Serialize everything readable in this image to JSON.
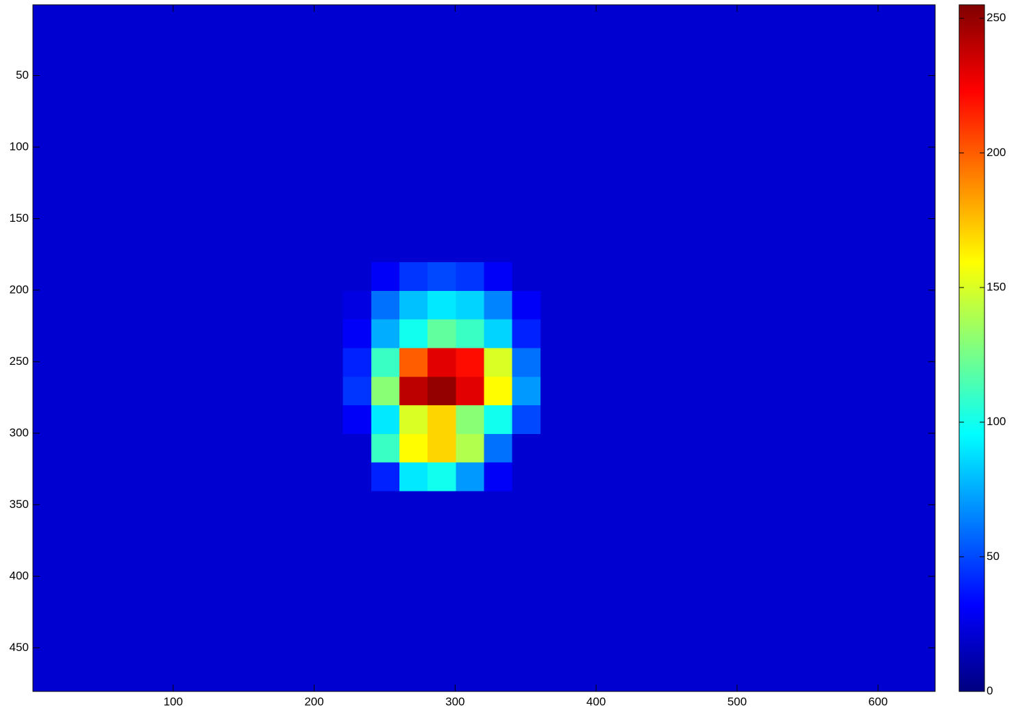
{
  "chart_data": {
    "type": "heatmap",
    "colormap": "jet",
    "x": [
      10.5,
      30.5,
      50.5,
      70.5,
      90.5,
      110.5,
      130.5,
      150.5,
      170.5,
      190.5,
      210.5,
      230.5,
      250.5,
      270.5,
      290.5,
      310.5,
      330.5,
      350.5,
      370.5,
      390.5,
      410.5,
      430.5,
      450.5,
      470.5,
      490.5,
      510.5,
      530.5,
      550.5,
      570.5,
      590.5,
      610.5,
      630.5
    ],
    "y": [
      10.5,
      30.5,
      50.5,
      70.5,
      90.5,
      110.5,
      130.5,
      150.5,
      170.5,
      190.5,
      210.5,
      230.5,
      250.5,
      270.5,
      290.5,
      310.5,
      330.5,
      350.5,
      370.5,
      390.5,
      410.5,
      430.5,
      450.5,
      470.5
    ],
    "values": [
      [
        20,
        20,
        20,
        20,
        20,
        20,
        20,
        20,
        20,
        20,
        20,
        20,
        20,
        20,
        20,
        20,
        20,
        20,
        20,
        20,
        20,
        20,
        20,
        20,
        20,
        20,
        20,
        20,
        20,
        20,
        20,
        20
      ],
      [
        20,
        20,
        20,
        20,
        20,
        20,
        20,
        20,
        20,
        20,
        20,
        20,
        20,
        20,
        20,
        20,
        20,
        20,
        20,
        20,
        20,
        20,
        20,
        20,
        20,
        20,
        20,
        20,
        20,
        20,
        20,
        20
      ],
      [
        20,
        20,
        20,
        20,
        20,
        20,
        20,
        20,
        20,
        20,
        20,
        20,
        20,
        20,
        20,
        20,
        20,
        20,
        20,
        20,
        20,
        20,
        20,
        20,
        20,
        20,
        20,
        20,
        20,
        20,
        20,
        20
      ],
      [
        20,
        20,
        20,
        20,
        20,
        20,
        20,
        20,
        20,
        20,
        20,
        20,
        20,
        20,
        20,
        20,
        20,
        20,
        20,
        20,
        20,
        20,
        20,
        20,
        20,
        20,
        20,
        20,
        20,
        20,
        20,
        20
      ],
      [
        20,
        20,
        20,
        20,
        20,
        20,
        20,
        20,
        20,
        20,
        20,
        20,
        20,
        20,
        20,
        20,
        20,
        20,
        20,
        20,
        20,
        20,
        20,
        20,
        20,
        20,
        20,
        20,
        20,
        20,
        20,
        20
      ],
      [
        20,
        20,
        20,
        20,
        20,
        20,
        20,
        20,
        20,
        20,
        20,
        20,
        20,
        20,
        20,
        20,
        20,
        20,
        20,
        20,
        20,
        20,
        20,
        20,
        20,
        20,
        20,
        20,
        20,
        20,
        20,
        20
      ],
      [
        20,
        20,
        20,
        20,
        20,
        20,
        20,
        20,
        20,
        20,
        20,
        20,
        20,
        20,
        20,
        20,
        20,
        20,
        20,
        20,
        20,
        20,
        20,
        20,
        20,
        20,
        20,
        20,
        20,
        20,
        20,
        20
      ],
      [
        20,
        20,
        20,
        20,
        20,
        20,
        20,
        20,
        20,
        20,
        20,
        20,
        20,
        20,
        20,
        20,
        20,
        20,
        20,
        20,
        20,
        20,
        20,
        20,
        20,
        20,
        20,
        20,
        20,
        20,
        20,
        20
      ],
      [
        20,
        20,
        20,
        20,
        20,
        20,
        20,
        20,
        20,
        20,
        20,
        20,
        20,
        20,
        20,
        20,
        20,
        20,
        20,
        20,
        20,
        20,
        20,
        20,
        20,
        20,
        20,
        20,
        20,
        20,
        20,
        20
      ],
      [
        20,
        20,
        20,
        20,
        20,
        20,
        20,
        20,
        20,
        20,
        20,
        20,
        30,
        45,
        50,
        45,
        30,
        20,
        20,
        20,
        20,
        20,
        20,
        20,
        20,
        20,
        20,
        20,
        20,
        20,
        20,
        20
      ],
      [
        20,
        20,
        20,
        20,
        20,
        20,
        20,
        20,
        20,
        20,
        20,
        25,
        60,
        80,
        90,
        85,
        65,
        30,
        20,
        20,
        20,
        20,
        20,
        20,
        20,
        20,
        20,
        20,
        20,
        20,
        20,
        20
      ],
      [
        20,
        20,
        20,
        20,
        20,
        20,
        20,
        20,
        20,
        20,
        20,
        30,
        75,
        100,
        120,
        110,
        85,
        40,
        20,
        20,
        20,
        20,
        20,
        20,
        20,
        20,
        20,
        20,
        20,
        20,
        20,
        20
      ],
      [
        20,
        20,
        20,
        20,
        20,
        20,
        20,
        20,
        20,
        20,
        20,
        40,
        110,
        200,
        230,
        220,
        150,
        60,
        20,
        20,
        20,
        20,
        20,
        20,
        20,
        20,
        20,
        20,
        20,
        20,
        20,
        20
      ],
      [
        20,
        20,
        20,
        20,
        20,
        20,
        20,
        20,
        20,
        20,
        20,
        45,
        130,
        240,
        250,
        230,
        160,
        70,
        20,
        20,
        20,
        20,
        20,
        20,
        20,
        20,
        20,
        20,
        20,
        20,
        20,
        20
      ],
      [
        20,
        20,
        20,
        20,
        20,
        20,
        20,
        20,
        20,
        20,
        20,
        30,
        90,
        150,
        170,
        130,
        100,
        50,
        20,
        20,
        20,
        20,
        20,
        20,
        20,
        20,
        20,
        20,
        20,
        20,
        20,
        20
      ],
      [
        20,
        20,
        20,
        20,
        20,
        20,
        20,
        20,
        20,
        20,
        20,
        20,
        110,
        160,
        170,
        140,
        60,
        20,
        20,
        20,
        20,
        20,
        20,
        20,
        20,
        20,
        20,
        20,
        20,
        20,
        20,
        20
      ],
      [
        20,
        20,
        20,
        20,
        20,
        20,
        20,
        20,
        20,
        20,
        20,
        20,
        40,
        90,
        100,
        70,
        30,
        20,
        20,
        20,
        20,
        20,
        20,
        20,
        20,
        20,
        20,
        20,
        20,
        20,
        20,
        20
      ],
      [
        20,
        20,
        20,
        20,
        20,
        20,
        20,
        20,
        20,
        20,
        20,
        20,
        20,
        20,
        20,
        20,
        20,
        20,
        20,
        20,
        20,
        20,
        20,
        20,
        20,
        20,
        20,
        20,
        20,
        20,
        20,
        20
      ],
      [
        20,
        20,
        20,
        20,
        20,
        20,
        20,
        20,
        20,
        20,
        20,
        20,
        20,
        20,
        20,
        20,
        20,
        20,
        20,
        20,
        20,
        20,
        20,
        20,
        20,
        20,
        20,
        20,
        20,
        20,
        20,
        20
      ],
      [
        20,
        20,
        20,
        20,
        20,
        20,
        20,
        20,
        20,
        20,
        20,
        20,
        20,
        20,
        20,
        20,
        20,
        20,
        20,
        20,
        20,
        20,
        20,
        20,
        20,
        20,
        20,
        20,
        20,
        20,
        20,
        20
      ],
      [
        20,
        20,
        20,
        20,
        20,
        20,
        20,
        20,
        20,
        20,
        20,
        20,
        20,
        20,
        20,
        20,
        20,
        20,
        20,
        20,
        20,
        20,
        20,
        20,
        20,
        20,
        20,
        20,
        20,
        20,
        20,
        20
      ],
      [
        20,
        20,
        20,
        20,
        20,
        20,
        20,
        20,
        20,
        20,
        20,
        20,
        20,
        20,
        20,
        20,
        20,
        20,
        20,
        20,
        20,
        20,
        20,
        20,
        20,
        20,
        20,
        20,
        20,
        20,
        20,
        20
      ],
      [
        20,
        20,
        20,
        20,
        20,
        20,
        20,
        20,
        20,
        20,
        20,
        20,
        20,
        20,
        20,
        20,
        20,
        20,
        20,
        20,
        20,
        20,
        20,
        20,
        20,
        20,
        20,
        20,
        20,
        20,
        20,
        20
      ],
      [
        20,
        20,
        20,
        20,
        20,
        20,
        20,
        20,
        20,
        20,
        20,
        20,
        20,
        20,
        20,
        20,
        20,
        20,
        20,
        20,
        20,
        20,
        20,
        20,
        20,
        20,
        20,
        20,
        20,
        20,
        20,
        20
      ]
    ],
    "xlim": [
      0.5,
      640.5
    ],
    "ylim": [
      0.5,
      480.5
    ],
    "y_reversed": true,
    "xticks": [
      100,
      200,
      300,
      400,
      500,
      600
    ],
    "yticks": [
      50,
      100,
      150,
      200,
      250,
      300,
      350,
      400,
      450
    ],
    "clim": [
      0,
      255
    ],
    "cticks": [
      0,
      50,
      100,
      150,
      200,
      250
    ]
  }
}
